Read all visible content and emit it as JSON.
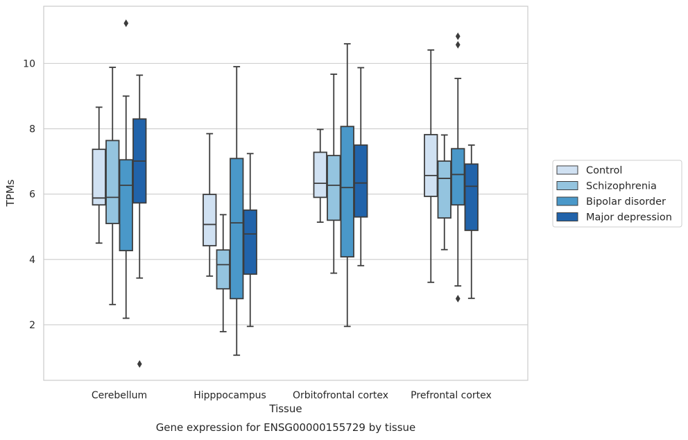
{
  "chart_data": {
    "type": "box",
    "xlabel": "Tissue",
    "ylabel": "TPMs",
    "caption": "Gene expression for ENSG00000155729 by tissue",
    "categories": [
      "Cerebellum",
      "Hipppocampus",
      "Orbitofrontal cortex",
      "Prefrontal cortex"
    ],
    "ylim": [
      0.3,
      11.75
    ],
    "yticks": [
      2,
      4,
      6,
      8,
      10
    ],
    "grid": "horizontal",
    "legend_position": "right-outside",
    "series": [
      {
        "name": "Control",
        "color": "#d0e1f2",
        "boxes": [
          {
            "whislo": 4.5,
            "q1": 5.67,
            "median": 5.88,
            "q3": 7.37,
            "whishi": 8.66,
            "fliers": []
          },
          {
            "whislo": 3.49,
            "q1": 4.42,
            "median": 5.07,
            "q3": 5.99,
            "whishi": 7.85,
            "fliers": []
          },
          {
            "whislo": 5.14,
            "q1": 5.9,
            "median": 6.33,
            "q3": 7.28,
            "whishi": 7.98,
            "fliers": []
          },
          {
            "whislo": 3.3,
            "q1": 5.93,
            "median": 6.57,
            "q3": 7.82,
            "whishi": 10.41,
            "fliers": []
          }
        ]
      },
      {
        "name": "Schizophrenia",
        "color": "#94c4df",
        "boxes": [
          {
            "whislo": 2.62,
            "q1": 5.1,
            "median": 5.9,
            "q3": 7.64,
            "whishi": 9.88,
            "fliers": []
          },
          {
            "whislo": 1.79,
            "q1": 3.1,
            "median": 3.84,
            "q3": 4.29,
            "whishi": 5.37,
            "fliers": []
          },
          {
            "whislo": 3.58,
            "q1": 5.2,
            "median": 6.27,
            "q3": 7.18,
            "whishi": 9.67,
            "fliers": []
          },
          {
            "whislo": 4.3,
            "q1": 5.27,
            "median": 6.48,
            "q3": 7.01,
            "whishi": 7.81,
            "fliers": []
          }
        ]
      },
      {
        "name": "Bipolar disorder",
        "color": "#4a98c9",
        "boxes": [
          {
            "whislo": 2.2,
            "q1": 4.27,
            "median": 6.27,
            "q3": 7.05,
            "whishi": 9.0,
            "fliers": [
              11.23
            ]
          },
          {
            "whislo": 1.07,
            "q1": 2.8,
            "median": 5.12,
            "q3": 7.09,
            "whishi": 9.9,
            "fliers": []
          },
          {
            "whislo": 1.95,
            "q1": 4.08,
            "median": 6.2,
            "q3": 8.07,
            "whishi": 10.6,
            "fliers": []
          },
          {
            "whislo": 3.19,
            "q1": 5.67,
            "median": 6.6,
            "q3": 7.39,
            "whishi": 9.54,
            "fliers": [
              2.8,
              10.57,
              10.83
            ]
          }
        ]
      },
      {
        "name": "Major depression",
        "color": "#2163aa",
        "boxes": [
          {
            "whislo": 3.43,
            "q1": 5.73,
            "median": 7.01,
            "q3": 8.3,
            "whishi": 9.64,
            "fliers": [
              0.8
            ]
          },
          {
            "whislo": 1.95,
            "q1": 3.55,
            "median": 4.78,
            "q3": 5.51,
            "whishi": 7.24,
            "fliers": []
          },
          {
            "whislo": 3.81,
            "q1": 5.3,
            "median": 6.34,
            "q3": 7.5,
            "whishi": 9.87,
            "fliers": []
          },
          {
            "whislo": 2.81,
            "q1": 4.89,
            "median": 6.24,
            "q3": 6.92,
            "whishi": 7.5,
            "fliers": []
          }
        ]
      }
    ]
  }
}
